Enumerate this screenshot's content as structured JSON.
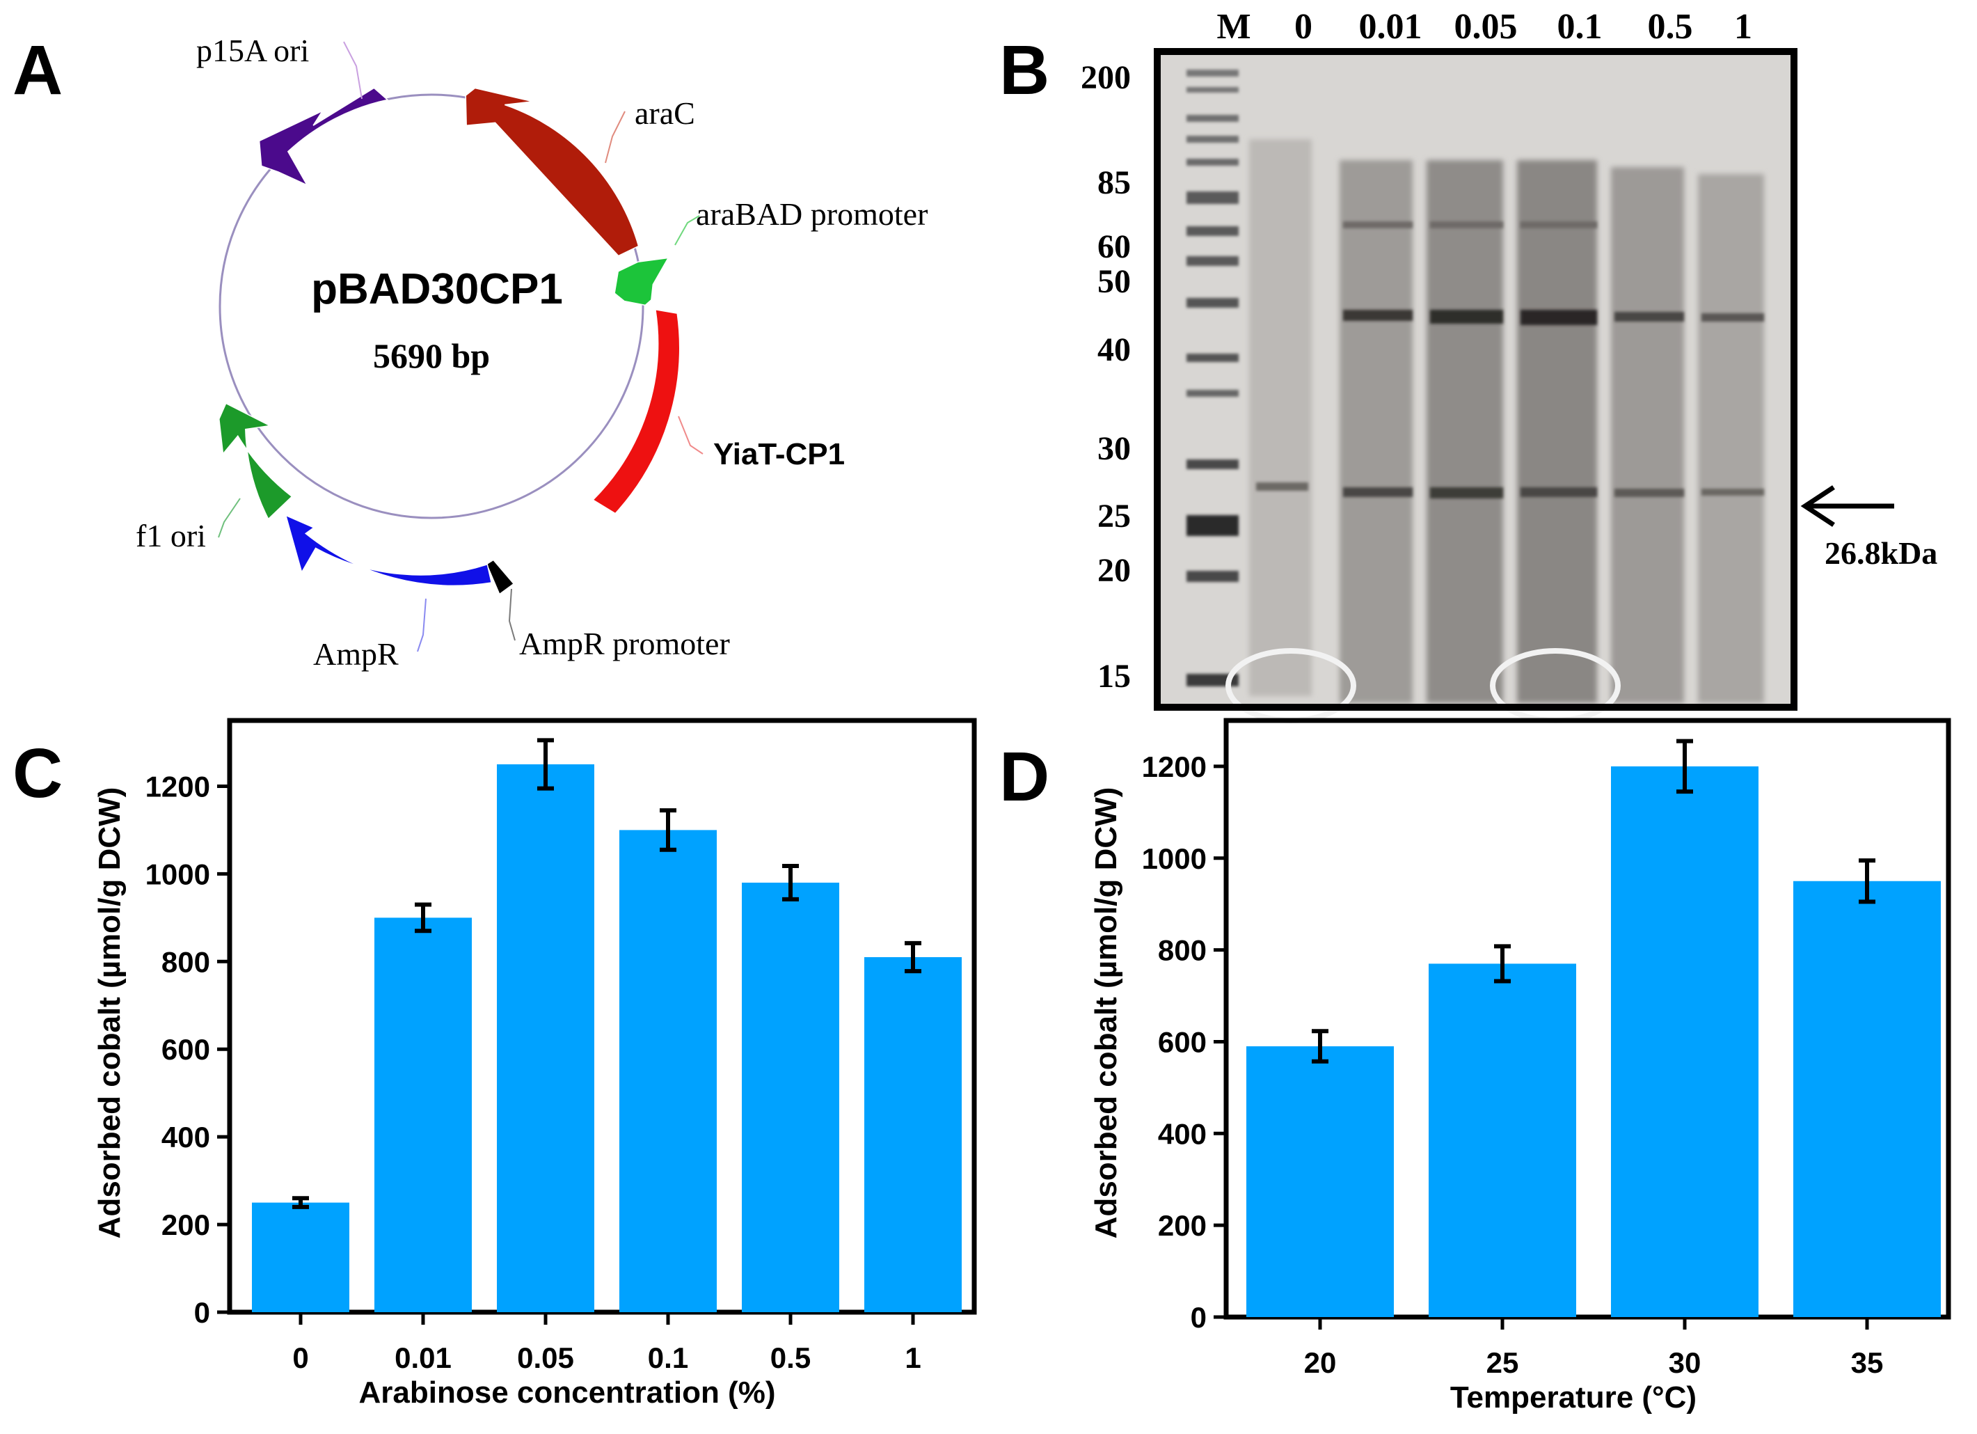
{
  "panel_letters": {
    "a": "A",
    "b": "B",
    "c": "C",
    "d": "D"
  },
  "plasmid": {
    "name": "pBAD30CP1",
    "size": "5690 bp",
    "features": [
      {
        "label": "p15A ori",
        "color": "#4b0a8c"
      },
      {
        "label": "araC",
        "color": "#b01c0a"
      },
      {
        "label": "araBAD promoter",
        "color": "#1cc43a"
      },
      {
        "label": "YiaT-CP1",
        "color": "#ee1111"
      },
      {
        "label": "AmpR promoter",
        "color": "#000000"
      },
      {
        "label": "AmpR",
        "color": "#1010e8"
      },
      {
        "label": "f1 ori",
        "color": "#1c9a2a"
      }
    ]
  },
  "gel": {
    "lane_labels": [
      "M",
      "0",
      "0.01",
      "0.05",
      "0.1",
      "0.5",
      "1"
    ],
    "marker_sizes": [
      "200",
      "85",
      "60",
      "50",
      "40",
      "30",
      "25",
      "20",
      "15"
    ],
    "target_label": "26.8kDa"
  },
  "chart_data": [
    {
      "type": "bar",
      "panel": "C",
      "categories": [
        "0",
        "0.01",
        "0.05",
        "0.1",
        "0.5",
        "1"
      ],
      "values": [
        250,
        900,
        1250,
        1100,
        980,
        810
      ],
      "errors": [
        10,
        30,
        55,
        45,
        38,
        32
      ],
      "xlabel": "Arabinose concentration (%)",
      "ylabel": "Adsorbed cobalt (µmol/g DCW)",
      "ylim": [
        0,
        1350
      ],
      "yticks": [
        "0",
        "200",
        "400",
        "600",
        "800",
        "1000",
        "1200"
      ],
      "bar_color": "#00a2ff",
      "grid": false
    },
    {
      "type": "bar",
      "panel": "D",
      "categories": [
        "20",
        "25",
        "30",
        "35"
      ],
      "values": [
        590,
        770,
        1200,
        950
      ],
      "errors": [
        33,
        38,
        55,
        45
      ],
      "xlabel": "Temperature (°C)",
      "ylabel": "Adsorbed cobalt (µmol/g DCW)",
      "ylim": [
        0,
        1300
      ],
      "yticks": [
        "0",
        "200",
        "400",
        "600",
        "800",
        "1000",
        "1200"
      ],
      "bar_color": "#00a2ff",
      "grid": false
    }
  ]
}
